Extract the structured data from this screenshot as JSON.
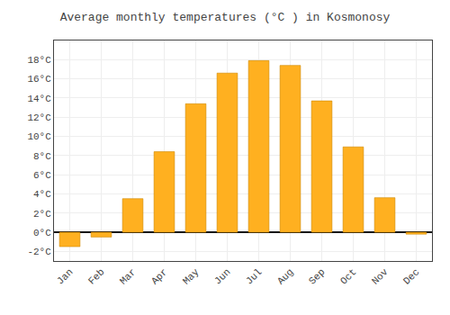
{
  "chart_data": {
    "type": "bar",
    "title": "Average monthly temperatures (°C ) in Kosmonosy",
    "categories": [
      "Jan",
      "Feb",
      "Mar",
      "Apr",
      "May",
      "Jun",
      "Jul",
      "Aug",
      "Sep",
      "Oct",
      "Nov",
      "Dec"
    ],
    "values": [
      -1.5,
      -0.5,
      3.5,
      8.4,
      13.4,
      16.6,
      17.9,
      17.4,
      13.7,
      8.9,
      3.6,
      -0.2
    ],
    "color": "#FFB020",
    "ylim": [
      -3,
      20
    ],
    "yticks": [
      {
        "value": -2,
        "label": "-2°C"
      },
      {
        "value": 0,
        "label": "0°C"
      },
      {
        "value": 2,
        "label": "2°C"
      },
      {
        "value": 4,
        "label": "4°C"
      },
      {
        "value": 6,
        "label": "6°C"
      },
      {
        "value": 8,
        "label": "8°C"
      },
      {
        "value": 10,
        "label": "10°C"
      },
      {
        "value": 12,
        "label": "12°C"
      },
      {
        "value": 14,
        "label": "14°C"
      },
      {
        "value": 16,
        "label": "16°C"
      },
      {
        "value": 18,
        "label": "18°C"
      }
    ],
    "grid": true
  }
}
